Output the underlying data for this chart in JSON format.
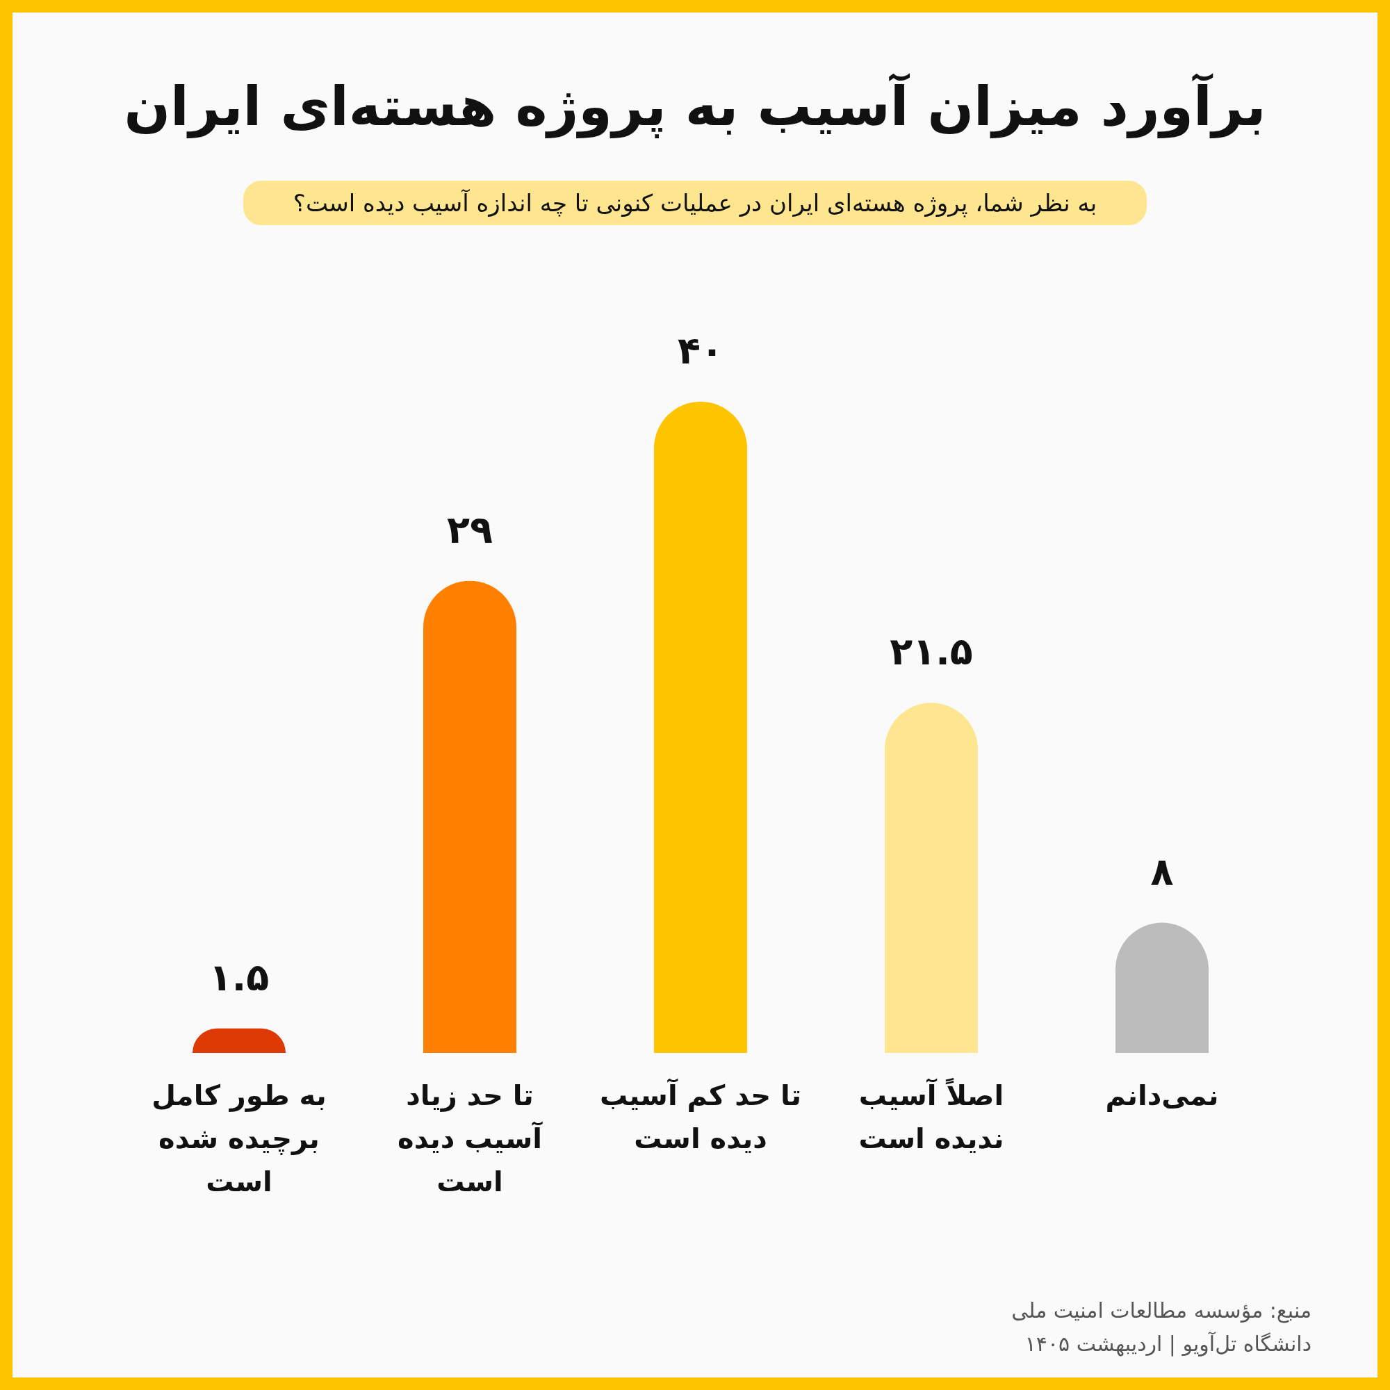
{
  "chart_data": {
    "type": "bar",
    "title": "برآورد میزان آسیب به پروژه هسته‌ای ایران",
    "subtitle": "به نظر شما، پروژه هسته‌ای ایران در عملیات کنونی تا چه اندازه آسیب دیده است؟",
    "categories": [
      "به طور کامل برچیده شده است",
      "تا حد زیاد آسیب دیده است",
      "تا حد کم آسیب دیده است",
      "اصلاً آسیب ندیده است",
      "نمی‌دانم"
    ],
    "values": [
      1.5,
      29,
      40,
      21.5,
      8
    ],
    "colors": [
      "#dd3a06",
      "#ff8000",
      "#ffc400",
      "#fde68f",
      "#bcbcbc"
    ],
    "value_labels": [
      "۱.۵",
      "۲۹",
      "۴۰",
      "۲۱.۵",
      "۸"
    ],
    "annotations": [
      "منبع: مؤسسه مطالعات امنیت ملی",
      "دانشگاه تل‌آویو | اردیبهشت ۱۴۰۵"
    ]
  }
}
